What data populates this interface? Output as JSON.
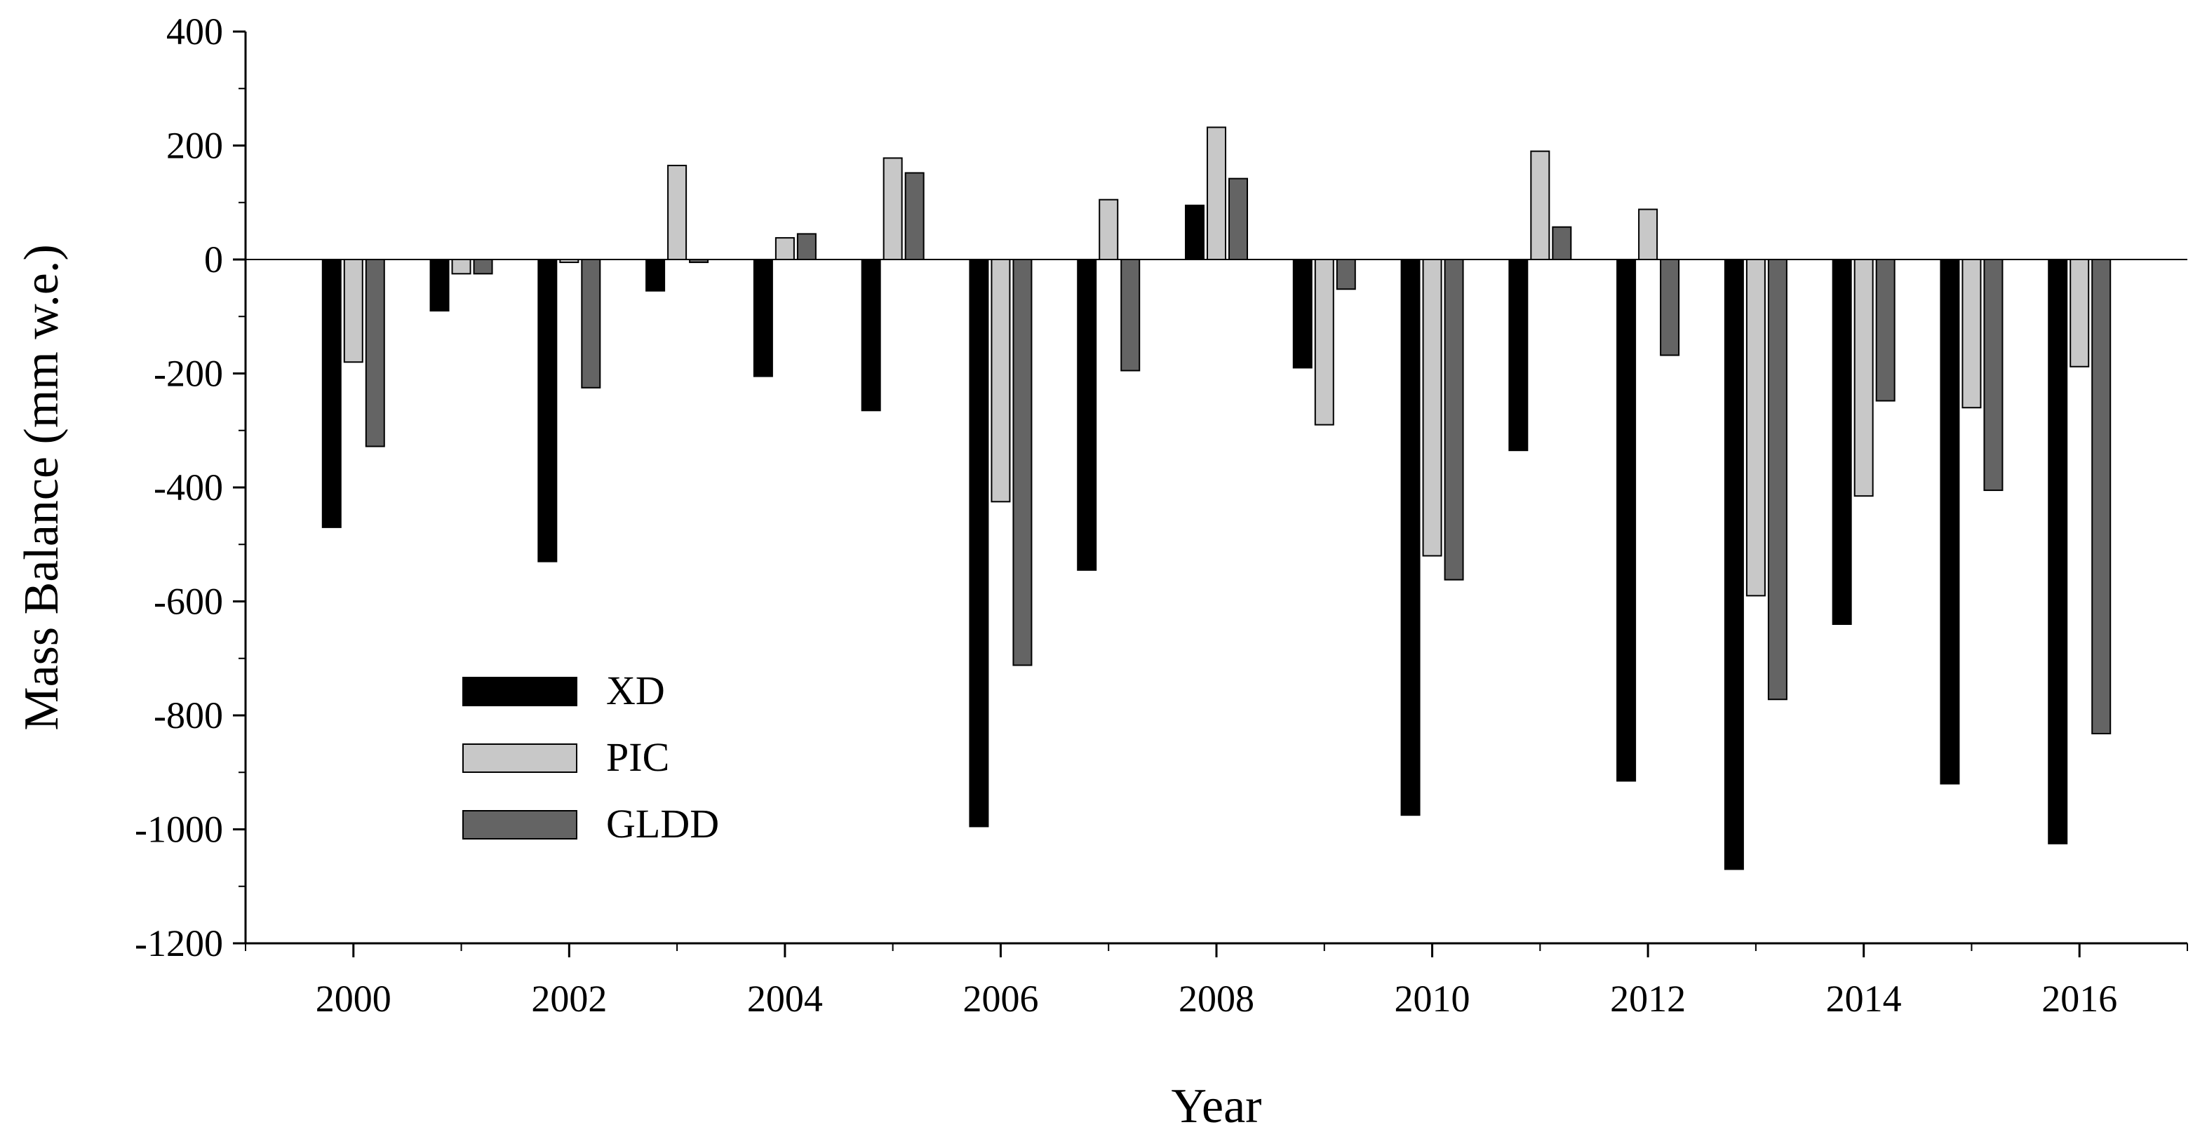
{
  "chart_data": {
    "type": "bar",
    "title": "",
    "xlabel": "Year",
    "ylabel": "Mass Balance (mm w.e.)",
    "ylim": [
      -1200,
      400
    ],
    "xlim": [
      1999,
      2017
    ],
    "yticks": [
      400,
      200,
      0,
      -200,
      -400,
      -600,
      -800,
      -1000,
      -1200
    ],
    "ytick_labels": [
      "400",
      "200",
      "0",
      "-200",
      "-400",
      "-600",
      "-800",
      "-1000",
      "-1200"
    ],
    "xticks": [
      2000,
      2002,
      2004,
      2006,
      2008,
      2010,
      2012,
      2014,
      2016
    ],
    "xtick_labels": [
      "2000",
      "2002",
      "2004",
      "2006",
      "2008",
      "2010",
      "2012",
      "2014",
      "2016"
    ],
    "grid": false,
    "legend_position": "lower-left",
    "categories": [
      "2000",
      "2001",
      "2002",
      "2003",
      "2004",
      "2005",
      "2006",
      "2007",
      "2008",
      "2009",
      "2010",
      "2011",
      "2012",
      "2013",
      "2014",
      "2015",
      "2016"
    ],
    "series": [
      {
        "name": "XD",
        "color": "#000000",
        "values": [
          -470,
          -90,
          -530,
          -55,
          -205,
          -265,
          -995,
          -545,
          95,
          -190,
          -975,
          -335,
          -915,
          -1070,
          -640,
          -920,
          -1025
        ]
      },
      {
        "name": "PIC",
        "color": "#c8c8c8",
        "values": [
          -180,
          -25,
          -5,
          165,
          38,
          178,
          -425,
          105,
          232,
          -290,
          -520,
          190,
          88,
          -590,
          -415,
          -260,
          -188
        ]
      },
      {
        "name": "GLDD",
        "color": "#646464",
        "values": [
          -328,
          -25,
          -225,
          -5,
          45,
          152,
          -712,
          -195,
          142,
          -52,
          -562,
          57,
          -168,
          -772,
          -248,
          -405,
          -832
        ]
      }
    ]
  }
}
